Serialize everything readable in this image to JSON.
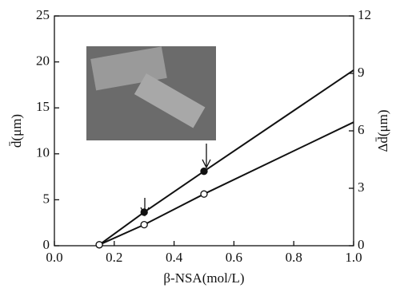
{
  "chart_data": {
    "type": "line",
    "x_label": "β-NSA(mol/L)",
    "y_label": "d̄(μm)",
    "y2_label": "Δd̄(μm)",
    "xlim": [
      0,
      1.0
    ],
    "xticks": [
      {
        "value": 0,
        "label": "0.0"
      },
      0.2,
      0.4,
      0.6,
      0.8,
      {
        "value": 1.0,
        "label": "1.0"
      }
    ],
    "ylim": [
      0,
      25
    ],
    "yticks": [
      0,
      5,
      10,
      15,
      20,
      25
    ],
    "y2lim": [
      0,
      12
    ],
    "y2ticks": [
      0,
      3,
      6,
      9,
      12
    ],
    "series": [
      {
        "marker": "filled",
        "color": "#111",
        "x": [
          0.15,
          0.3,
          0.5,
          1.0
        ],
        "values": [
          0.1,
          3.65,
          8.1,
          19.1
        ],
        "markers": [
          true,
          true,
          true,
          false
        ]
      },
      {
        "marker": "open",
        "color": "#111",
        "axis": "y2",
        "x": [
          0.15,
          0.3,
          0.5,
          1.0
        ],
        "values": [
          0.05,
          1.1,
          2.7,
          6.45
        ],
        "markers": [
          true,
          true,
          true,
          false
        ]
      }
    ]
  }
}
